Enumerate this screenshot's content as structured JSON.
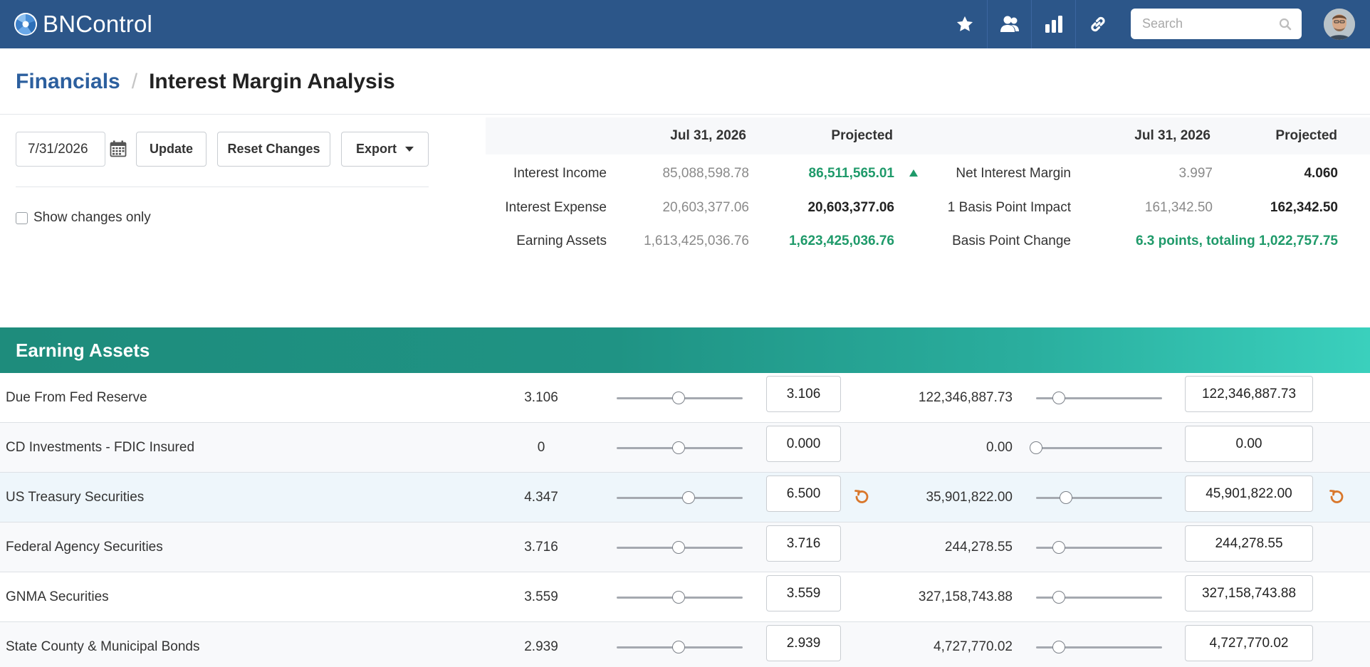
{
  "app": {
    "brand": "BNControl"
  },
  "nav": {
    "icons": [
      "star-icon",
      "users-icon",
      "bar-chart-icon",
      "link-icon"
    ],
    "search_placeholder": "Search"
  },
  "breadcrumb": {
    "parent": "Financials",
    "separator": "/",
    "current": "Interest Margin Analysis"
  },
  "controls": {
    "date_value": "7/31/2026",
    "update_label": "Update",
    "reset_label": "Reset Changes",
    "export_label": "Export",
    "show_changes_label": "Show changes only",
    "show_changes_checked": false
  },
  "summary": {
    "left": {
      "col_current": "Jul 31, 2026",
      "col_projected": "Projected",
      "rows": [
        {
          "label": "Interest Income",
          "current": "85,088,598.78",
          "projected": "86,511,565.01"
        },
        {
          "label": "Interest Expense",
          "current": "20,603,377.06",
          "projected": "20,603,377.06"
        },
        {
          "label": "Earning Assets",
          "current": "1,613,425,036.76",
          "projected": "1,623,425,036.76"
        }
      ]
    },
    "right": {
      "col_current": "Jul 31, 2026",
      "col_projected": "Projected",
      "rows": [
        {
          "label": "Net Interest Margin",
          "current": "3.997",
          "projected": "4.060"
        },
        {
          "label": "1 Basis Point Impact",
          "current": "161,342.50",
          "projected": "162,342.50"
        },
        {
          "label": "Basis Point Change",
          "projected": "6.3 points, totaling 1,022,757.75"
        }
      ]
    }
  },
  "section": {
    "title": "Earning Assets"
  },
  "rows": [
    {
      "name": "Due From Fed Reserve",
      "rate": "3.106",
      "rate_slider": 0.49,
      "rate_input": "3.106",
      "balance": "122,346,887.73",
      "balance_slider": 0.18,
      "balance_input": "122,346,887.73",
      "changed": false
    },
    {
      "name": "CD Investments - FDIC Insured",
      "rate": "0",
      "rate_slider": 0.49,
      "rate_input": "0.000",
      "balance": "0.00",
      "balance_slider": 0.0,
      "balance_input": "0.00",
      "changed": false
    },
    {
      "name": "US Treasury Securities",
      "rate": "4.347",
      "rate_slider": 0.57,
      "rate_input": "6.500",
      "balance": "35,901,822.00",
      "balance_slider": 0.24,
      "balance_input": "45,901,822.00",
      "changed": true
    },
    {
      "name": "Federal Agency Securities",
      "rate": "3.716",
      "rate_slider": 0.49,
      "rate_input": "3.716",
      "balance": "244,278.55",
      "balance_slider": 0.18,
      "balance_input": "244,278.55",
      "changed": false
    },
    {
      "name": "GNMA Securities",
      "rate": "3.559",
      "rate_slider": 0.49,
      "rate_input": "3.559",
      "balance": "327,158,743.88",
      "balance_slider": 0.18,
      "balance_input": "327,158,743.88",
      "changed": false
    },
    {
      "name": "State County & Municipal Bonds",
      "rate": "2.939",
      "rate_slider": 0.49,
      "rate_input": "2.939",
      "balance": "4,727,770.02",
      "balance_slider": 0.18,
      "balance_input": "4,727,770.02",
      "changed": false
    }
  ],
  "colors": {
    "navbar": "#2c5689",
    "accent_green": "#1f9a6a",
    "teal": "#1e8c7c",
    "undo": "#d9772b"
  }
}
